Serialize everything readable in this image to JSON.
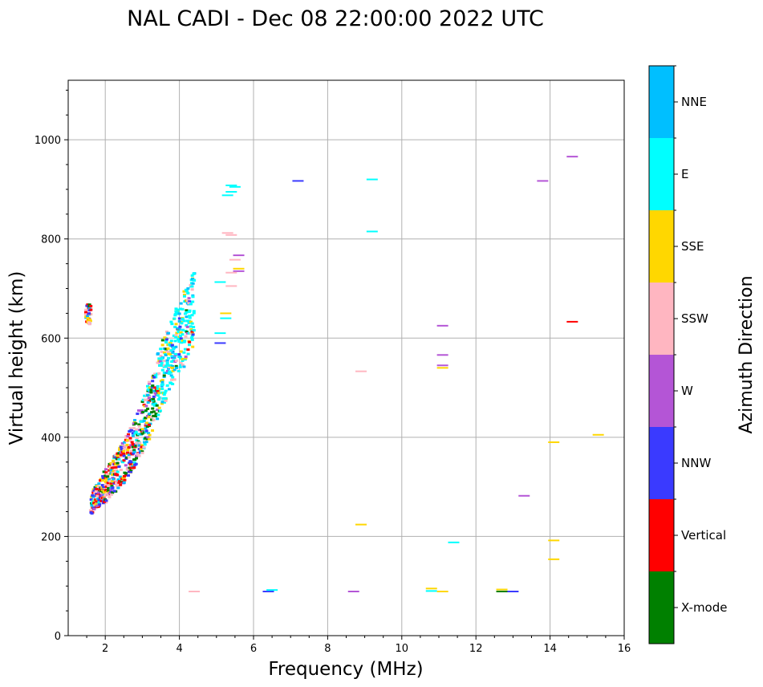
{
  "chart_data": {
    "type": "scatter",
    "title": "NAL CADI - Dec 08 22:00:00 2022 UTC",
    "xlabel": "Frequency (MHz)",
    "ylabel": "Virtual height (km)",
    "xlim": [
      1,
      16
    ],
    "ylim": [
      0,
      1120
    ],
    "xticks": [
      2,
      4,
      6,
      8,
      10,
      12,
      14,
      16
    ],
    "yticks": [
      0,
      200,
      400,
      600,
      800,
      1000
    ],
    "grid": true,
    "colorbar": {
      "title": "Azimuth Direction",
      "categories": [
        {
          "name": "X-mode",
          "color": "#008000"
        },
        {
          "name": "Vertical",
          "color": "#ff0000"
        },
        {
          "name": "NNW",
          "color": "#3a3aff"
        },
        {
          "name": "W",
          "color": "#b455d6"
        },
        {
          "name": "SSW",
          "color": "#ffb6c1"
        },
        {
          "name": "SSE",
          "color": "#ffd700"
        },
        {
          "name": "E",
          "color": "#00ffff"
        },
        {
          "name": "NNE",
          "color": "#00bfff"
        }
      ]
    },
    "dense_region": {
      "description_points": [
        [
          1.6,
          265
        ],
        [
          2.0,
          300
        ],
        [
          2.5,
          350
        ],
        [
          3.0,
          420
        ],
        [
          3.5,
          520
        ],
        [
          4.0,
          600
        ],
        [
          4.3,
          650
        ]
      ],
      "freq_range": [
        1.5,
        4.6
      ],
      "height_range": [
        255,
        735
      ]
    },
    "points": [
      {
        "f": 5.4,
        "h": 908,
        "az": "E"
      },
      {
        "f": 5.5,
        "h": 905,
        "az": "E"
      },
      {
        "f": 5.4,
        "h": 895,
        "az": "E"
      },
      {
        "f": 5.3,
        "h": 888,
        "az": "E"
      },
      {
        "f": 5.3,
        "h": 812,
        "az": "SSW"
      },
      {
        "f": 5.4,
        "h": 808,
        "az": "SSW"
      },
      {
        "f": 5.6,
        "h": 767,
        "az": "W"
      },
      {
        "f": 5.5,
        "h": 758,
        "az": "SSW"
      },
      {
        "f": 5.6,
        "h": 740,
        "az": "SSE"
      },
      {
        "f": 5.6,
        "h": 735,
        "az": "W"
      },
      {
        "f": 5.4,
        "h": 732,
        "az": "SSW"
      },
      {
        "f": 5.1,
        "h": 713,
        "az": "E"
      },
      {
        "f": 5.4,
        "h": 705,
        "az": "SSW"
      },
      {
        "f": 5.25,
        "h": 650,
        "az": "SSE"
      },
      {
        "f": 5.25,
        "h": 640,
        "az": "E"
      },
      {
        "f": 5.1,
        "h": 610,
        "az": "E"
      },
      {
        "f": 5.1,
        "h": 590,
        "az": "NNW"
      },
      {
        "f": 7.2,
        "h": 917,
        "az": "NNW"
      },
      {
        "f": 9.2,
        "h": 920,
        "az": "E"
      },
      {
        "f": 9.2,
        "h": 815,
        "az": "E"
      },
      {
        "f": 8.9,
        "h": 533,
        "az": "SSW"
      },
      {
        "f": 8.9,
        "h": 224,
        "az": "SSE"
      },
      {
        "f": 11.1,
        "h": 625,
        "az": "W"
      },
      {
        "f": 11.1,
        "h": 566,
        "az": "W"
      },
      {
        "f": 11.1,
        "h": 545,
        "az": "W"
      },
      {
        "f": 11.1,
        "h": 540,
        "az": "SSE"
      },
      {
        "f": 11.4,
        "h": 188,
        "az": "E"
      },
      {
        "f": 10.8,
        "h": 95,
        "az": "SSE"
      },
      {
        "f": 10.8,
        "h": 90,
        "az": "E"
      },
      {
        "f": 11.1,
        "h": 89,
        "az": "SSE"
      },
      {
        "f": 6.4,
        "h": 89,
        "az": "NNW"
      },
      {
        "f": 6.5,
        "h": 92,
        "az": "E"
      },
      {
        "f": 8.7,
        "h": 89,
        "az": "W"
      },
      {
        "f": 4.4,
        "h": 89,
        "az": "SSW"
      },
      {
        "f": 12.7,
        "h": 93,
        "az": "SSE"
      },
      {
        "f": 12.7,
        "h": 89,
        "az": "X-mode"
      },
      {
        "f": 13.0,
        "h": 89,
        "az": "NNW"
      },
      {
        "f": 13.8,
        "h": 917,
        "az": "W"
      },
      {
        "f": 14.6,
        "h": 966,
        "az": "W"
      },
      {
        "f": 14.6,
        "h": 633,
        "az": "Vertical"
      },
      {
        "f": 14.1,
        "h": 390,
        "az": "SSE"
      },
      {
        "f": 15.3,
        "h": 405,
        "az": "SSE"
      },
      {
        "f": 13.3,
        "h": 282,
        "az": "W"
      },
      {
        "f": 14.1,
        "h": 192,
        "az": "SSE"
      },
      {
        "f": 14.1,
        "h": 154,
        "az": "SSE"
      }
    ]
  }
}
